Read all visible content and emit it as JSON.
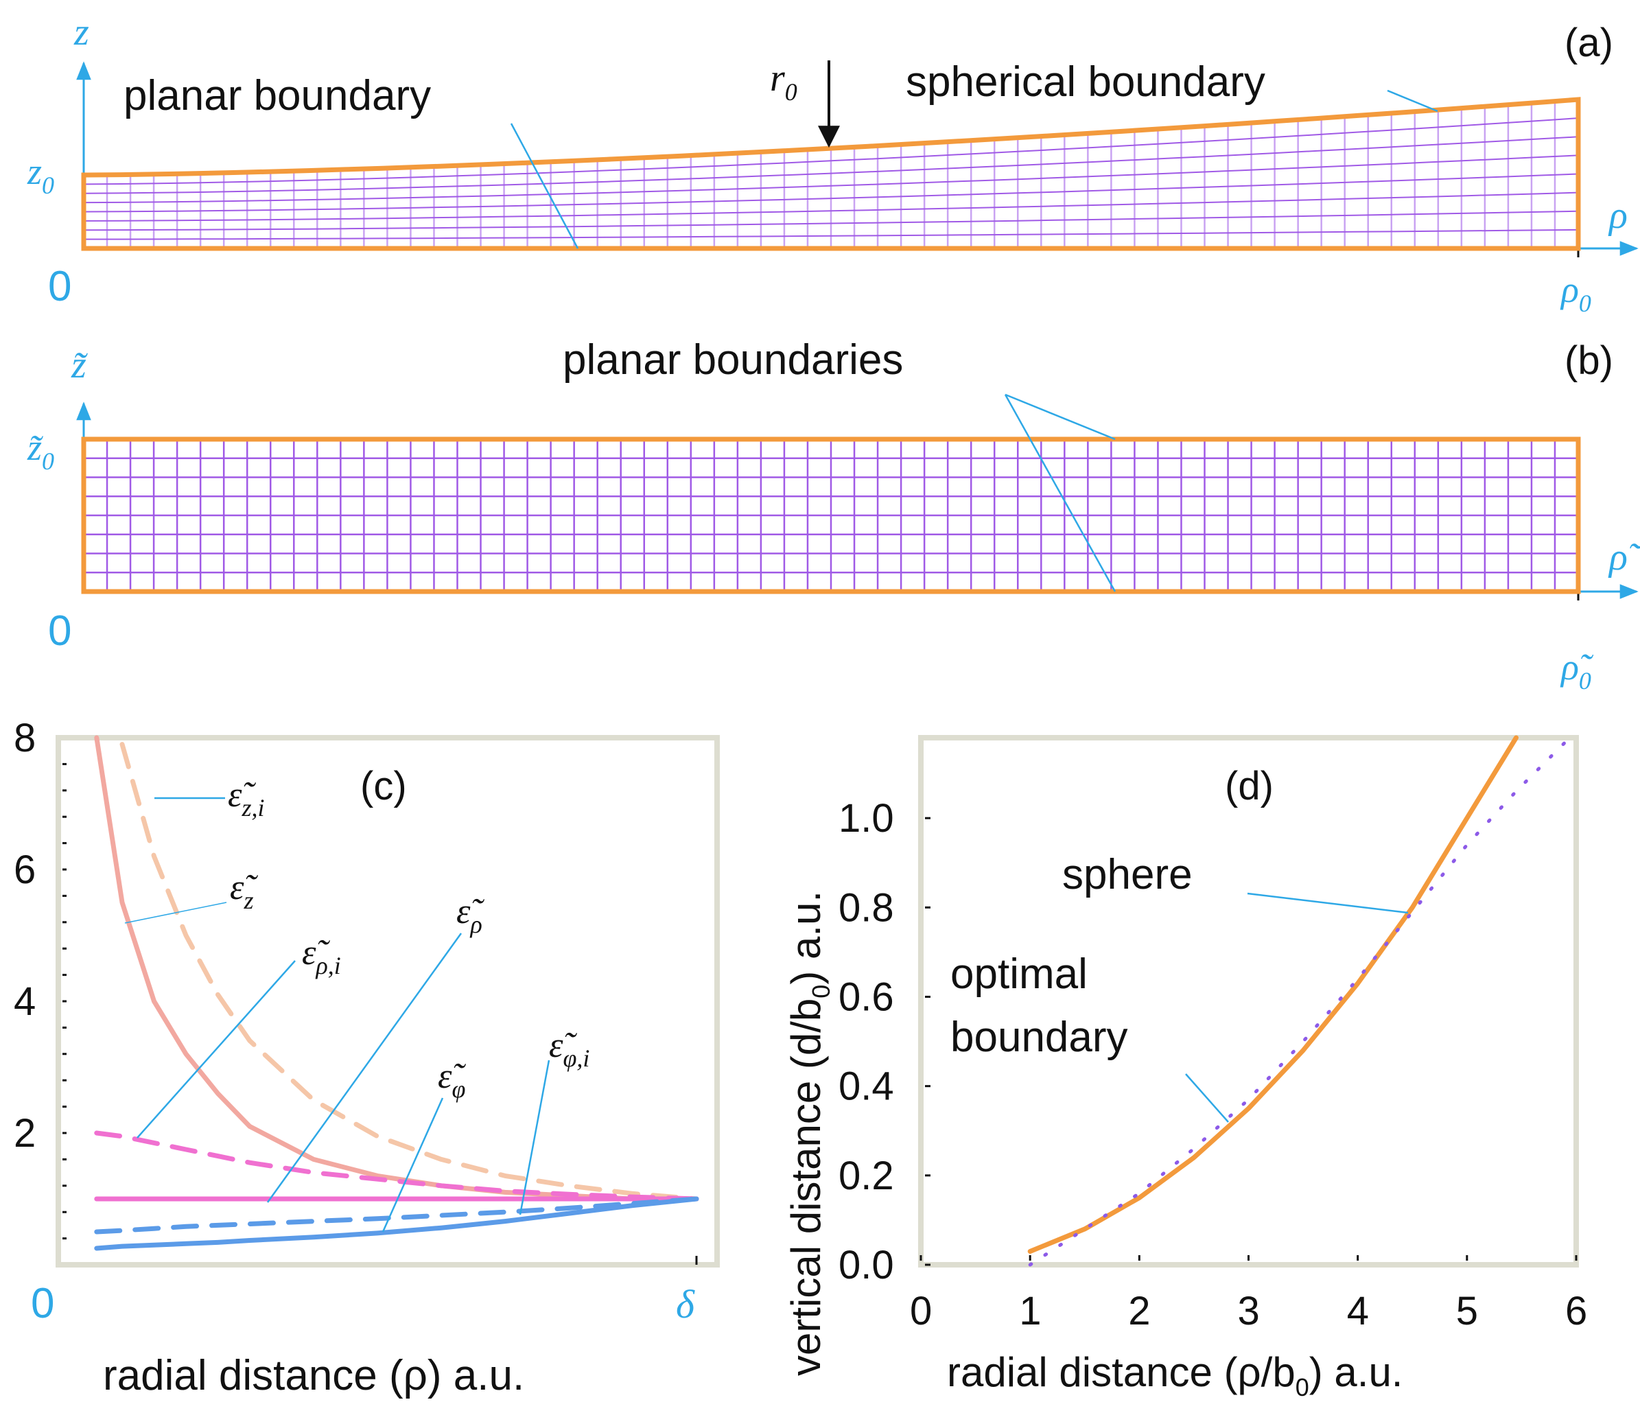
{
  "colors": {
    "orange": "#f39a3c",
    "purple": "#a05ae6",
    "purple_light": "#c9a3f2",
    "blue_label": "#2ea8e6",
    "axis_box": "#ddddd0",
    "eps_z": "#f2a8a0",
    "eps_z_i": "#f5c6a8",
    "eps_rho": "#f070d0",
    "eps_rho_i": "#f070d0",
    "eps_phi": "#5b9be8",
    "eps_phi_i": "#5b9be8",
    "optimal": "#8c5ae8"
  },
  "panel_a": {
    "tag": "(a)",
    "z_axis": "z",
    "rho_axis": "ρ",
    "z0_label": "z",
    "z0_sub": "0",
    "rho0_label": "ρ",
    "rho0_sub": "0",
    "origin": "0",
    "r0_label": "r",
    "r0_sub": "0",
    "planar_label": "planar boundary",
    "spherical_label": "spherical boundary"
  },
  "panel_b": {
    "tag": "(b)",
    "z_axis": "z̃",
    "rho_axis": "ρ̃",
    "z0_label": "z̃",
    "z0_sub": "0",
    "rho0_label": "ρ̃",
    "rho0_sub": "0",
    "origin": "0",
    "planar_label": "planar boundaries"
  },
  "panel_c": {
    "tag": "(c)",
    "xlabel": "radial distance (ρ) a.u.",
    "x_start": "0",
    "x_end": "δ",
    "y_ticks": [
      "8",
      "6",
      "4",
      "2"
    ],
    "ylim": [
      0,
      8
    ],
    "legend": {
      "eps_z_i": "ε̃",
      "eps_z_i_sub": "z,i",
      "eps_z": "ε̃",
      "eps_z_sub": "z",
      "eps_rho_i": "ε̃",
      "eps_rho_i_sub": "ρ,i",
      "eps_rho": "ε̃",
      "eps_rho_sub": "ρ",
      "eps_phi": "ε̃",
      "eps_phi_sub": "φ",
      "eps_phi_i": "ε̃",
      "eps_phi_i_sub": "φ,i"
    }
  },
  "panel_d": {
    "tag": "(d)",
    "xlabel": "radial distance (ρ/b",
    "xlabel_sub": "0",
    "xlabel_end": ") a.u.",
    "ylabel": "vertical distance (d/b",
    "ylabel_sub": "0",
    "ylabel_end": ") a.u.",
    "x_ticks": [
      "0",
      "1",
      "2",
      "3",
      "4",
      "5",
      "6"
    ],
    "y_ticks": [
      "0.0",
      "0.2",
      "0.4",
      "0.6",
      "0.8",
      "1.0"
    ],
    "sphere_label": "sphere",
    "optimal_label_1": "optimal",
    "optimal_label_2": "boundary"
  },
  "chart_data": [
    {
      "type": "line",
      "title": "(c)",
      "xlabel": "radial distance (ρ) a.u.",
      "ylabel": "",
      "xlim": [
        0,
        1
      ],
      "ylim": [
        0,
        8
      ],
      "x": [
        0.06,
        0.1,
        0.15,
        0.2,
        0.25,
        0.3,
        0.4,
        0.5,
        0.6,
        0.7,
        0.8,
        0.9,
        1.0
      ],
      "series": [
        {
          "name": "ε̃_z",
          "style": "solid",
          "values": [
            8.0,
            5.5,
            4.0,
            3.2,
            2.6,
            2.1,
            1.6,
            1.35,
            1.2,
            1.1,
            1.05,
            1.0,
            1.0
          ]
        },
        {
          "name": "ε̃_z,i",
          "style": "dashed",
          "values": [
            null,
            7.9,
            6.2,
            5.0,
            4.1,
            3.4,
            2.5,
            1.95,
            1.6,
            1.35,
            1.2,
            1.08,
            1.0
          ]
        },
        {
          "name": "ε̃_ρ,i",
          "style": "dashed",
          "values": [
            2.0,
            1.95,
            1.85,
            1.75,
            1.65,
            1.55,
            1.4,
            1.3,
            1.2,
            1.12,
            1.07,
            1.03,
            1.0
          ]
        },
        {
          "name": "ε̃_ρ",
          "style": "solid",
          "values": [
            1.0,
            1.0,
            1.0,
            1.0,
            1.0,
            1.0,
            1.0,
            1.0,
            1.0,
            1.0,
            1.0,
            1.0,
            1.0
          ]
        },
        {
          "name": "ε̃_φ,i",
          "style": "dashed",
          "values": [
            0.5,
            0.52,
            0.55,
            0.58,
            0.6,
            0.62,
            0.66,
            0.7,
            0.75,
            0.8,
            0.86,
            0.93,
            1.0
          ]
        },
        {
          "name": "ε̃_φ",
          "style": "solid",
          "values": [
            0.25,
            0.28,
            0.3,
            0.32,
            0.34,
            0.37,
            0.42,
            0.48,
            0.56,
            0.66,
            0.78,
            0.9,
            1.0
          ]
        }
      ]
    },
    {
      "type": "line",
      "title": "(d)",
      "xlabel": "radial distance (ρ/b0) a.u.",
      "ylabel": "vertical distance (d/b0) a.u.",
      "xlim": [
        0,
        6
      ],
      "ylim": [
        0,
        1.18
      ],
      "x": [
        1.0,
        1.5,
        2.0,
        2.5,
        3.0,
        3.5,
        4.0,
        4.5,
        5.0,
        5.45,
        5.9
      ],
      "series": [
        {
          "name": "sphere",
          "style": "solid",
          "values": [
            0.03,
            0.08,
            0.15,
            0.24,
            0.35,
            0.48,
            0.63,
            0.8,
            1.0,
            1.18,
            null
          ]
        },
        {
          "name": "optimal boundary",
          "style": "dotted",
          "values": [
            0.0,
            0.08,
            0.16,
            0.26,
            0.37,
            0.5,
            0.64,
            0.79,
            0.94,
            1.06,
            1.17
          ]
        }
      ]
    }
  ]
}
